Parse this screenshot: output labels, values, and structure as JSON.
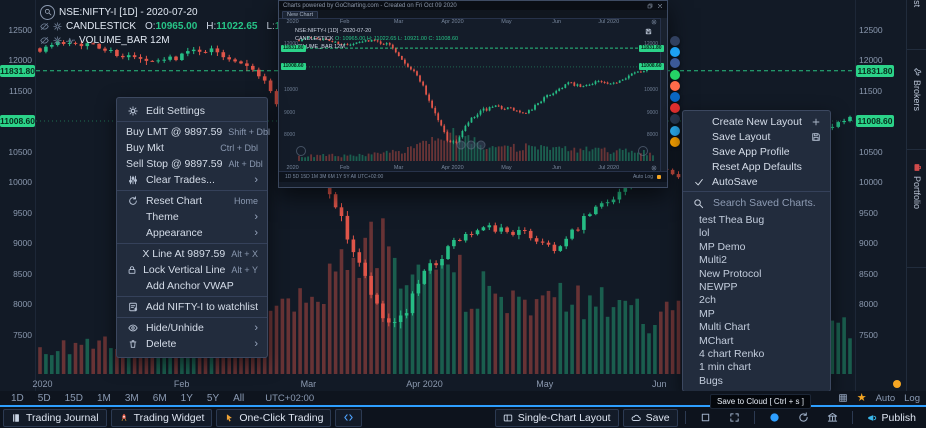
{
  "colors": {
    "up": "#26bd85",
    "down": "#e05549",
    "tag_green": "#2bd389",
    "accent_blue": "#2e9fff",
    "star_orange": "#f5a623"
  },
  "legend": {
    "symbol": "NSE:NIFTY-I [1D] - 2020-07-20",
    "study": "CANDLESTICK",
    "ohlc": [
      {
        "k": "O:",
        "v": "10965.00"
      },
      {
        "k": "H:",
        "v": "11022.65"
      },
      {
        "k": "L:",
        "v": "10921.00"
      },
      {
        "k": "C:",
        "v": "11008.60"
      }
    ],
    "volume": "VOLUME_BAR 12M"
  },
  "axis": {
    "ticks": [
      {
        "label": "12500",
        "price": 12500
      },
      {
        "label": "12000",
        "price": 12000
      },
      {
        "label": "11500",
        "price": 11500
      },
      {
        "label": "10500",
        "price": 10500
      },
      {
        "label": "10000",
        "price": 10000
      },
      {
        "label": "9500",
        "price": 9500
      },
      {
        "label": "9000",
        "price": 9000
      },
      {
        "label": "8500",
        "price": 8500
      },
      {
        "label": "8000",
        "price": 8000
      },
      {
        "label": "7500",
        "price": 7500
      }
    ],
    "tags": [
      {
        "label": "11831.80",
        "price": 11831.8
      },
      {
        "label": "11008.60",
        "price": 11008.6
      }
    ]
  },
  "time_axis": [
    {
      "label": "2020",
      "f": 0.008
    },
    {
      "label": "Feb",
      "f": 0.178
    },
    {
      "label": "Mar",
      "f": 0.333
    },
    {
      "label": "Apr 2020",
      "f": 0.475
    },
    {
      "label": "May",
      "f": 0.622
    },
    {
      "label": "Jun",
      "f": 0.762
    }
  ],
  "context_menu": {
    "sections": [
      {
        "items": [
          {
            "icon": "gear-icon",
            "label": "Edit Settings"
          }
        ]
      },
      {
        "items": [
          {
            "label": "Buy LMT @ 9897.59",
            "right": "Shift + Dbl",
            "flush": true
          },
          {
            "label": "Buy Mkt",
            "right": "Ctrl + Dbl",
            "flush": true
          },
          {
            "label": "Sell Stop @ 9897.59",
            "right": "Alt + Dbl",
            "flush": true
          },
          {
            "icon": "sliders-icon",
            "label": "Clear Trades...",
            "submenu": true
          }
        ]
      },
      {
        "items": [
          {
            "icon": "reset-icon",
            "label": "Reset Chart",
            "right": "Home"
          },
          {
            "label": "Theme",
            "submenu": true
          },
          {
            "label": "Appearance",
            "submenu": true
          }
        ]
      },
      {
        "items": [
          {
            "label": "X Line At 9897.59",
            "right": "Alt + X"
          },
          {
            "icon": "lock-icon",
            "label": "Lock Vertical Line",
            "right": "Alt + Y"
          },
          {
            "label": "Add Anchor VWAP"
          }
        ]
      },
      {
        "items": [
          {
            "icon": "watchlist-add-icon",
            "label": "Add NIFTY-I to watchlist"
          }
        ]
      },
      {
        "items": [
          {
            "icon": "eye-icon",
            "label": "Hide/Unhide",
            "submenu": true
          },
          {
            "icon": "trash-icon",
            "label": "Delete",
            "submenu": true
          }
        ]
      }
    ]
  },
  "layout_menu": {
    "items": [
      {
        "label": "Create New Layout",
        "right_icon": "plus-icon"
      },
      {
        "label": "Save Layout",
        "right_icon": "floppy-icon"
      },
      {
        "label": "Save App Profile"
      },
      {
        "label": "Reset App Defaults"
      },
      {
        "label": "AutoSave",
        "checked": true
      }
    ]
  },
  "saved_charts": {
    "placeholder": "Search Saved Charts.",
    "items": [
      "test Thea Bug",
      "lol",
      "MP Demo",
      "Multi2",
      "New Protocol",
      "NEWPP",
      "2ch",
      "MP",
      "Multi Chart",
      "MChart",
      "4 chart Renko",
      "1 min chart",
      "Bugs"
    ]
  },
  "popup": {
    "title": "Charts powered by GoCharting.com - Created on Fri Oct 09 2020",
    "tab": "New Chart",
    "months": [
      {
        "label": "2020",
        "f": 0.015
      },
      {
        "label": "Feb",
        "f": 0.155
      },
      {
        "label": "Mar",
        "f": 0.3
      },
      {
        "label": "Apr 2020",
        "f": 0.445
      },
      {
        "label": "May",
        "f": 0.59
      },
      {
        "label": "Jun",
        "f": 0.725
      },
      {
        "label": "Jul 2020",
        "f": 0.865
      }
    ],
    "mini_ticks": [
      12000,
      11000,
      10000,
      9000,
      8000
    ],
    "tags": {
      "line": "11831.80",
      "last": "11008.60"
    },
    "legend": {
      "symbol": "NSE:NIFTY-I [1D] - 2020-07-20",
      "study": "CANDLESTICK",
      "ohlc": "O: 10965.00 H: 11022.65 L: 10921.00 C: 11008.60",
      "volume": "VOLUME_BAR 12M"
    },
    "toolbar_left": "1D  5D  15D  1M  3M  6M  1Y  5Y  All      UTC+02:00",
    "toolbar_right": "Auto   Log"
  },
  "timeframe_bar": {
    "buttons": [
      "1D",
      "5D",
      "15D",
      "1M",
      "3M",
      "6M",
      "1Y",
      "5Y",
      "All"
    ],
    "timezone": "UTC+02:00",
    "auto": "Auto",
    "log": "Log"
  },
  "bottom_bar": {
    "left": [
      {
        "icon": "journal-icon",
        "label": "Trading Journal",
        "boxed": true
      },
      {
        "icon": "rocket-icon",
        "label": "Trading Widget",
        "boxed": true
      },
      {
        "icon": "pointer-icon",
        "label": "One-Click Trading",
        "boxed": true
      },
      {
        "icon": "code-icon",
        "boxed": true
      }
    ],
    "right": [
      {
        "icon": "layout-icon",
        "label": "Single-Chart Layout",
        "boxed": true
      },
      {
        "icon": "cloud-icon",
        "label": "Save",
        "boxed": true
      },
      {
        "sep": true
      },
      {
        "icon": "square-icon"
      },
      {
        "icon": "expand-icon"
      },
      {
        "sep": true
      },
      {
        "icon": "globe-icon",
        "icolor": "#2e9fff"
      },
      {
        "icon": "sync-icon"
      },
      {
        "icon": "bank-icon"
      },
      {
        "sep": true
      },
      {
        "icon": "megaphone-icon",
        "label": "Publish",
        "icolor": "#39b7ea"
      }
    ]
  },
  "tooltip": "Save to Cloud [ Ctrl + s ]",
  "side_tabs": [
    {
      "label": "Watchlist"
    },
    {
      "icon": "wrench-icon",
      "label": "Brokers"
    },
    {
      "icon": "portfolio-icon",
      "label": "Portfolio"
    }
  ],
  "chart_data": {
    "type": "candlestick",
    "symbol": "NSE:NIFTY-I",
    "interval": "1D",
    "as_of": "2020-07-20",
    "ohlc": {
      "open": 10965.0,
      "high": 11022.65,
      "low": 10921.0,
      "close": 11008.6
    },
    "volume_label": "12M",
    "y_ticks": [
      12500,
      12000,
      11500,
      10500,
      10000,
      9500,
      9000,
      8500,
      8000,
      7500
    ],
    "key_levels": [
      11831.8,
      11008.6
    ],
    "x_months": [
      "2020",
      "Feb",
      "Mar",
      "Apr 2020",
      "May",
      "Jun"
    ],
    "candle_count": 138,
    "price_path": [
      [
        0,
        12200
      ],
      [
        0.04,
        12330
      ],
      [
        0.1,
        12100
      ],
      [
        0.14,
        11950
      ],
      [
        0.2,
        12200
      ],
      [
        0.26,
        11950
      ],
      [
        0.3,
        11200
      ],
      [
        0.34,
        10500
      ],
      [
        0.38,
        9100
      ],
      [
        0.42,
        7800
      ],
      [
        0.44,
        7610
      ],
      [
        0.48,
        8600
      ],
      [
        0.52,
        9100
      ],
      [
        0.56,
        9250
      ],
      [
        0.6,
        9150
      ],
      [
        0.64,
        8900
      ],
      [
        0.68,
        9500
      ],
      [
        0.72,
        9900
      ],
      [
        0.76,
        10300
      ],
      [
        0.8,
        10100
      ],
      [
        0.84,
        10400
      ],
      [
        0.88,
        10200
      ],
      [
        0.92,
        10550
      ],
      [
        0.96,
        10800
      ],
      [
        1.0,
        11008
      ]
    ],
    "volume_profile": [
      [
        0,
        0.18
      ],
      [
        0.08,
        0.22
      ],
      [
        0.16,
        0.2
      ],
      [
        0.24,
        0.28
      ],
      [
        0.3,
        0.45
      ],
      [
        0.36,
        0.65
      ],
      [
        0.4,
        0.9
      ],
      [
        0.44,
        1.0
      ],
      [
        0.48,
        0.8
      ],
      [
        0.54,
        0.62
      ],
      [
        0.6,
        0.5
      ],
      [
        0.66,
        0.55
      ],
      [
        0.72,
        0.48
      ],
      [
        0.78,
        0.42
      ],
      [
        0.84,
        0.45
      ],
      [
        0.9,
        0.38
      ],
      [
        1.0,
        0.33
      ]
    ]
  }
}
